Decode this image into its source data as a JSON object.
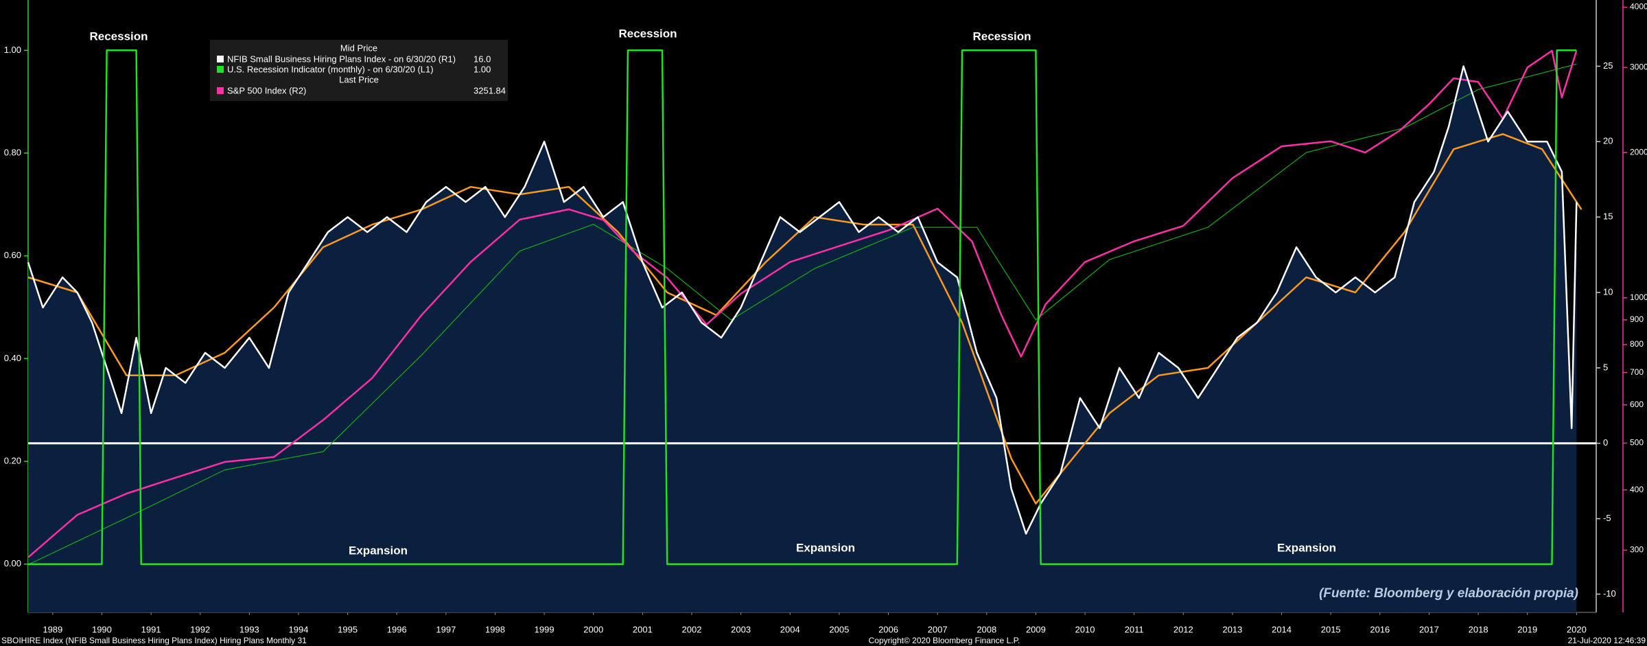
{
  "chart_data": {
    "type": "line",
    "xlim": [
      1989.0,
      2020.9
    ],
    "xticks": [
      {
        "value": 1989.5,
        "label": "1989"
      },
      {
        "value": 1990.5,
        "label": "1990"
      },
      {
        "value": 1991.5,
        "label": "1991"
      },
      {
        "value": 1992.5,
        "label": "1992"
      },
      {
        "value": 1993.5,
        "label": "1993"
      },
      {
        "value": 1994.5,
        "label": "1994"
      },
      {
        "value": 1995.5,
        "label": "1995"
      },
      {
        "value": 1996.5,
        "label": "1996"
      },
      {
        "value": 1997.5,
        "label": "1997"
      },
      {
        "value": 1998.5,
        "label": "1998"
      },
      {
        "value": 1999.5,
        "label": "1999"
      },
      {
        "value": 2000.5,
        "label": "2000"
      },
      {
        "value": 2001.5,
        "label": "2001"
      },
      {
        "value": 2002.5,
        "label": "2002"
      },
      {
        "value": 2003.5,
        "label": "2003"
      },
      {
        "value": 2004.5,
        "label": "2004"
      },
      {
        "value": 2005.5,
        "label": "2005"
      },
      {
        "value": 2006.5,
        "label": "2006"
      },
      {
        "value": 2007.5,
        "label": "2007"
      },
      {
        "value": 2008.5,
        "label": "2008"
      },
      {
        "value": 2009.5,
        "label": "2009"
      },
      {
        "value": 2010.5,
        "label": "2010"
      },
      {
        "value": 2011.5,
        "label": "2011"
      },
      {
        "value": 2012.5,
        "label": "2012"
      },
      {
        "value": 2013.5,
        "label": "2013"
      },
      {
        "value": 2014.5,
        "label": "2014"
      },
      {
        "value": 2015.5,
        "label": "2015"
      },
      {
        "value": 2016.5,
        "label": "2016"
      },
      {
        "value": 2017.5,
        "label": "2017"
      },
      {
        "value": 2018.5,
        "label": "2018"
      },
      {
        "value": 2019.5,
        "label": "2019"
      },
      {
        "value": 2020.5,
        "label": "2020"
      }
    ],
    "ylim": [
      -0.094,
      1.098
    ],
    "yticks": [
      {
        "value": 0,
        "label": "0.00"
      },
      {
        "value": 0.2,
        "label": "0.20"
      },
      {
        "value": 0.4,
        "label": "0.40"
      },
      {
        "value": 0.6,
        "label": "0.60"
      },
      {
        "value": 0.8,
        "label": "0.80"
      },
      {
        "value": 1,
        "label": "1.00"
      }
    ],
    "y2lim": [
      -11.21,
      29.39
    ],
    "y2ticks": [
      -10,
      -5,
      0,
      5,
      10,
      15,
      20,
      25
    ],
    "y3lim": [
      223,
      4140
    ],
    "y3log": true,
    "y3ticks": [
      300,
      400,
      500,
      600,
      700,
      800,
      900,
      1000,
      2000,
      3000,
      4000
    ],
    "zero_line": true,
    "area_color": "#0b1f3f",
    "legend_headers": [
      "Mid Price",
      "Last Price"
    ],
    "series": [
      {
        "name": "NFIB Small Business Hiring Plans Index  -  on 6/30/20  (R1)",
        "last_label": "16.0",
        "color": "#ffffff",
        "axis": "y2",
        "area": true,
        "x": [
          1989.0,
          1989.3,
          1989.7,
          1990.0,
          1990.3,
          1990.6,
          1990.9,
          1991.2,
          1991.5,
          1991.8,
          1992.2,
          1992.6,
          1993.0,
          1993.5,
          1993.9,
          1994.3,
          1994.7,
          1995.1,
          1995.5,
          1995.9,
          1996.3,
          1996.7,
          1997.1,
          1997.5,
          1997.9,
          1998.3,
          1998.7,
          1999.1,
          1999.5,
          1999.9,
          2000.3,
          2000.7,
          2001.1,
          2001.5,
          2001.9,
          2002.3,
          2002.7,
          2003.1,
          2003.5,
          2003.9,
          2004.3,
          2004.7,
          2005.1,
          2005.5,
          2005.9,
          2006.3,
          2006.7,
          2007.1,
          2007.5,
          2007.9,
          2008.3,
          2008.7,
          2009.0,
          2009.3,
          2009.6,
          2010.0,
          2010.4,
          2010.8,
          2011.2,
          2011.6,
          2012.0,
          2012.4,
          2012.8,
          2013.2,
          2013.6,
          2014.0,
          2014.4,
          2014.8,
          2015.2,
          2015.6,
          2016.0,
          2016.4,
          2016.8,
          2017.2,
          2017.6,
          2017.9,
          2018.2,
          2018.7,
          2019.1,
          2019.5,
          2019.9,
          2020.2,
          2020.4,
          2020.5
        ],
        "values": [
          12,
          9,
          11,
          10,
          8,
          5,
          2,
          7,
          2,
          5,
          4,
          6,
          5,
          7,
          5,
          10,
          12,
          14,
          15,
          14,
          15,
          14,
          16,
          17,
          16,
          17,
          15,
          17,
          20,
          16,
          17,
          15,
          16,
          12,
          9,
          10,
          8,
          7,
          9,
          12,
          15,
          14,
          15,
          16,
          14,
          15,
          14,
          15,
          12,
          11,
          6,
          3,
          -3,
          -6,
          -4,
          -2,
          3,
          1,
          5,
          3,
          6,
          5,
          3,
          5,
          7,
          8,
          10,
          13,
          11,
          10,
          11,
          10,
          11,
          16,
          18,
          21,
          25,
          20,
          22,
          20,
          20,
          18,
          1,
          16
        ]
      },
      {
        "name": "U.S. Recession Indicator (monthly)  -  on 6/30/20  (L1)",
        "last_label": "1.00",
        "color": "#22e022",
        "axis": "y",
        "x": [
          1989.0,
          1990.5,
          1990.6,
          1991.2,
          1991.3,
          2001.1,
          2001.2,
          2001.9,
          2002.0,
          2007.9,
          2008.0,
          2009.5,
          2009.6,
          2020.0,
          2020.1,
          2020.5
        ],
        "values": [
          0,
          0,
          1,
          1,
          0,
          0,
          1,
          1,
          0,
          0,
          1,
          1,
          0,
          0,
          1,
          1
        ]
      },
      {
        "name": "S&P 500 Index  (R2)",
        "last_label": "3251.84",
        "color": "#ff2fa8",
        "axis": "y3",
        "x": [
          1989.0,
          1990.0,
          1991.0,
          1992.0,
          1993.0,
          1994.0,
          1995.0,
          1996.0,
          1997.0,
          1998.0,
          1999.0,
          2000.0,
          2000.7,
          2001.3,
          2002.0,
          2002.8,
          2003.5,
          2004.5,
          2005.5,
          2006.5,
          2007.5,
          2008.2,
          2008.8,
          2009.2,
          2009.7,
          2010.5,
          2011.5,
          2012.5,
          2013.5,
          2014.5,
          2015.5,
          2016.2,
          2016.9,
          2017.5,
          2018.0,
          2018.5,
          2019.0,
          2019.5,
          2020.0,
          2020.2,
          2020.5
        ],
        "values": [
          290,
          355,
          393,
          424,
          457,
          468,
          558,
          682,
          920,
          1186,
          1452,
          1525,
          1450,
          1250,
          1100,
          880,
          1020,
          1186,
          1280,
          1380,
          1530,
          1310,
          920,
          755,
          970,
          1186,
          1310,
          1410,
          1770,
          2060,
          2110,
          2000,
          2220,
          2520,
          2850,
          2800,
          2350,
          3000,
          3250,
          2600,
          3250
        ]
      },
      {
        "color": "#ff9a1a",
        "axis": "y2",
        "x": [
          1989.0,
          1990.0,
          1991.0,
          1992.0,
          1993.0,
          1994.0,
          1995.0,
          1996.0,
          1997.0,
          1998.0,
          1999.0,
          2000.0,
          2001.0,
          2002.0,
          2003.0,
          2004.0,
          2005.0,
          2006.0,
          2007.0,
          2008.0,
          2009.0,
          2009.5,
          2010.0,
          2011.0,
          2012.0,
          2013.0,
          2014.0,
          2015.0,
          2016.0,
          2017.0,
          2018.0,
          2019.0,
          2019.8,
          2020.3,
          2020.6
        ],
        "values": [
          11,
          10,
          4.5,
          4.5,
          6,
          9,
          13,
          14.5,
          15.5,
          17,
          16.5,
          17,
          14,
          10,
          8.5,
          12,
          15,
          14.5,
          14.5,
          8,
          -1,
          -4,
          -2,
          2,
          4.5,
          5,
          8,
          11,
          10,
          14,
          19.5,
          20.5,
          19.5,
          17,
          15.5
        ]
      },
      {
        "color": "#12b012",
        "axis": "y3",
        "x": [
          1989.0,
          1991.0,
          1993.0,
          1995.0,
          1997.0,
          1999.0,
          2000.5,
          2002.0,
          2003.3,
          2005.0,
          2007.0,
          2008.3,
          2009.5,
          2011.0,
          2013.0,
          2015.0,
          2017.0,
          2018.5,
          2020.5
        ],
        "values": [
          280,
          350,
          440,
          480,
          760,
          1250,
          1420,
          1150,
          900,
          1150,
          1400,
          1400,
          900,
          1200,
          1400,
          2000,
          2250,
          2700,
          3050
        ]
      }
    ],
    "annotations": [
      "Recession",
      "Recession",
      "Recession",
      "Expansion",
      "Expansion",
      "Expansion",
      "(Fuente: Bloomberg y elaboración propia)"
    ],
    "footer": [
      "SBOIHIRE Index (NFIB Small Business Hiring Plans Index) Hiring Plans  Monthly 31",
      "Copyright© 2020 Bloomberg Finance L.P.",
      "21-Jul-2020 12:46:39"
    ]
  }
}
